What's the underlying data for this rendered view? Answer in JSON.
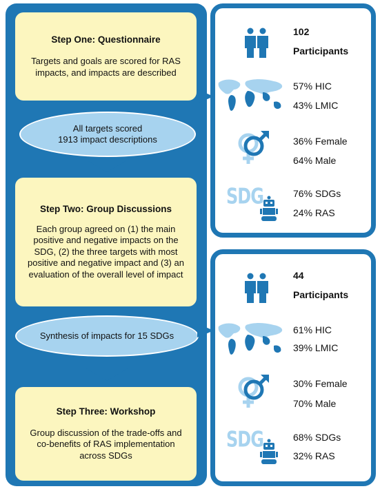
{
  "steps": [
    {
      "title": "Step One: Questionnaire",
      "body": "Targets and goals are scored for RAS impacts, and impacts are described",
      "oval": [
        "All targets scored",
        "1913 impact descriptions"
      ]
    },
    {
      "title": "Step Two: Group Discussions",
      "body": "Each group agreed on (1) the main positive and negative impacts on the SDG, (2) the three targets with most positive and negative impact and (3) an evaluation of the overall level of impact",
      "oval": [
        "Synthesis of impacts for 15 SDGs"
      ]
    },
    {
      "title": "Step Three: Workshop",
      "body": "Group discussion of the trade-offs and co-benefits of RAS implementation across SDGs"
    }
  ],
  "panels": [
    {
      "participants_count": "102",
      "participants_label": "Participants",
      "hic": "57% HIC",
      "lmic": "43% LMIC",
      "female": "36% Female",
      "male": "64% Male",
      "sdgs": "76% SDGs",
      "ras": "24% RAS"
    },
    {
      "participants_count": "44",
      "participants_label": "Participants",
      "hic": "61% HIC",
      "lmic": "39% LMIC",
      "female": "30% Female",
      "male": "70% Male",
      "sdgs": "68% SDGs",
      "ras": "32% RAS"
    }
  ],
  "sdg_logo_text": "SDG",
  "icons": [
    "people-icon",
    "world-map-icon",
    "gender-icon",
    "sdg-logo-icon",
    "robot-icon"
  ],
  "colors": {
    "blue": "#1f77b4",
    "yellow": "#fcf6bf",
    "oval": "#a7d3ef",
    "map_dark": "#1f77b4",
    "map_light": "#a7d3ef"
  }
}
